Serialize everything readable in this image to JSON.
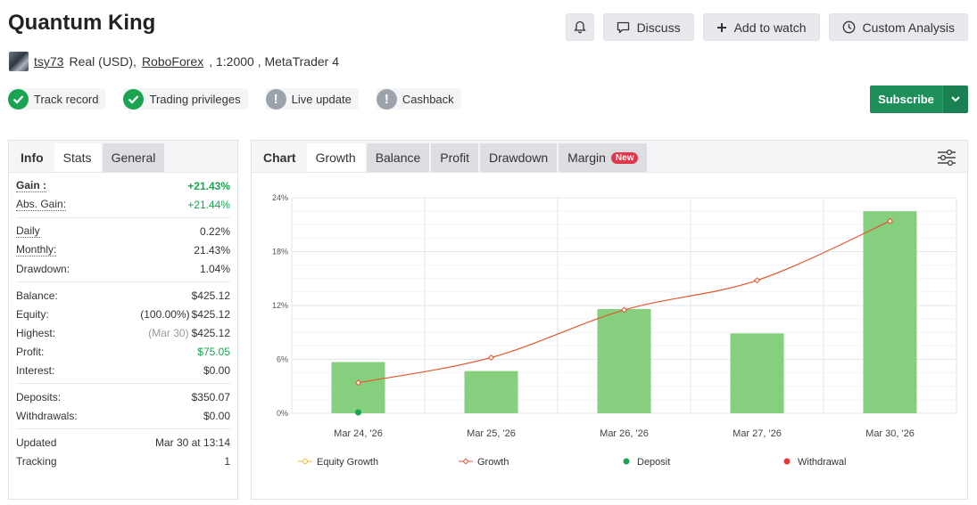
{
  "page": {
    "title": "Quantum King"
  },
  "actions": {
    "discuss": "Discuss",
    "add_to_watch": "Add to watch",
    "custom_analysis": "Custom Analysis"
  },
  "account": {
    "user": "tsy73",
    "type": "Real (USD),",
    "broker": "RoboForex",
    "leverage": ", 1:2000 , MetaTrader 4"
  },
  "badges": [
    {
      "label": "Track record",
      "status": "ok"
    },
    {
      "label": "Trading privileges",
      "status": "ok"
    },
    {
      "label": "Live update",
      "status": "warning"
    },
    {
      "label": "Cashback",
      "status": "warning"
    }
  ],
  "subscribe": {
    "label": "Subscribe"
  },
  "left_tabs": [
    "Info",
    "Stats",
    "General"
  ],
  "stats": {
    "gain": {
      "label": "Gain :",
      "value": "+21.43%"
    },
    "abs_gain": {
      "label": "Abs. Gain:",
      "value": "+21.44%"
    },
    "daily": {
      "label": "Daily",
      "value": "0.22%"
    },
    "monthly": {
      "label": "Monthly:",
      "value": "21.43%"
    },
    "drawdown": {
      "label": "Drawdown:",
      "value": "1.04%"
    },
    "balance": {
      "label": "Balance:",
      "value": "$425.12"
    },
    "equity": {
      "label": "Equity:",
      "note": "(100.00%)",
      "value": "$425.12"
    },
    "highest": {
      "label": "Highest:",
      "note": "(Mar 30)",
      "value": "$425.12"
    },
    "profit": {
      "label": "Profit:",
      "value": "$75.05"
    },
    "interest": {
      "label": "Interest:",
      "value": "$0.00"
    },
    "deposits": {
      "label": "Deposits:",
      "value": "$350.07"
    },
    "withdrawals": {
      "label": "Withdrawals:",
      "value": "$0.00"
    },
    "updated": {
      "label": "Updated",
      "value": "Mar 30 at 13:14"
    },
    "tracking": {
      "label": "Tracking",
      "value": "1"
    }
  },
  "chart_tabs": {
    "chart": "Chart",
    "growth": "Growth",
    "balance": "Balance",
    "profit": "Profit",
    "drawdown": "Drawdown",
    "margin": "Margin",
    "new_tag": "New"
  },
  "colors": {
    "bar": "#86cf7f",
    "growth_line": "#e4572e",
    "equity_line": "#f0b429",
    "deposit": "#1aa350",
    "withdrawal": "#e53935"
  },
  "chart_data": {
    "type": "bar",
    "categories": [
      "Mar 24, '26",
      "Mar 25, '26",
      "Mar 26, '26",
      "Mar 27, '26",
      "Mar 30, '26"
    ],
    "ylim": [
      0,
      24
    ],
    "yticks": [
      "0%",
      "6%",
      "12%",
      "18%",
      "24%"
    ],
    "bars": [
      5.7,
      4.7,
      11.6,
      8.9,
      22.5
    ],
    "growth": [
      3.4,
      6.2,
      11.5,
      14.8,
      21.4
    ],
    "deposits": [
      0
    ],
    "legend": [
      "Equity Growth",
      "Growth",
      "Deposit",
      "Withdrawal"
    ],
    "legend_position": "bottom",
    "grid": true
  }
}
